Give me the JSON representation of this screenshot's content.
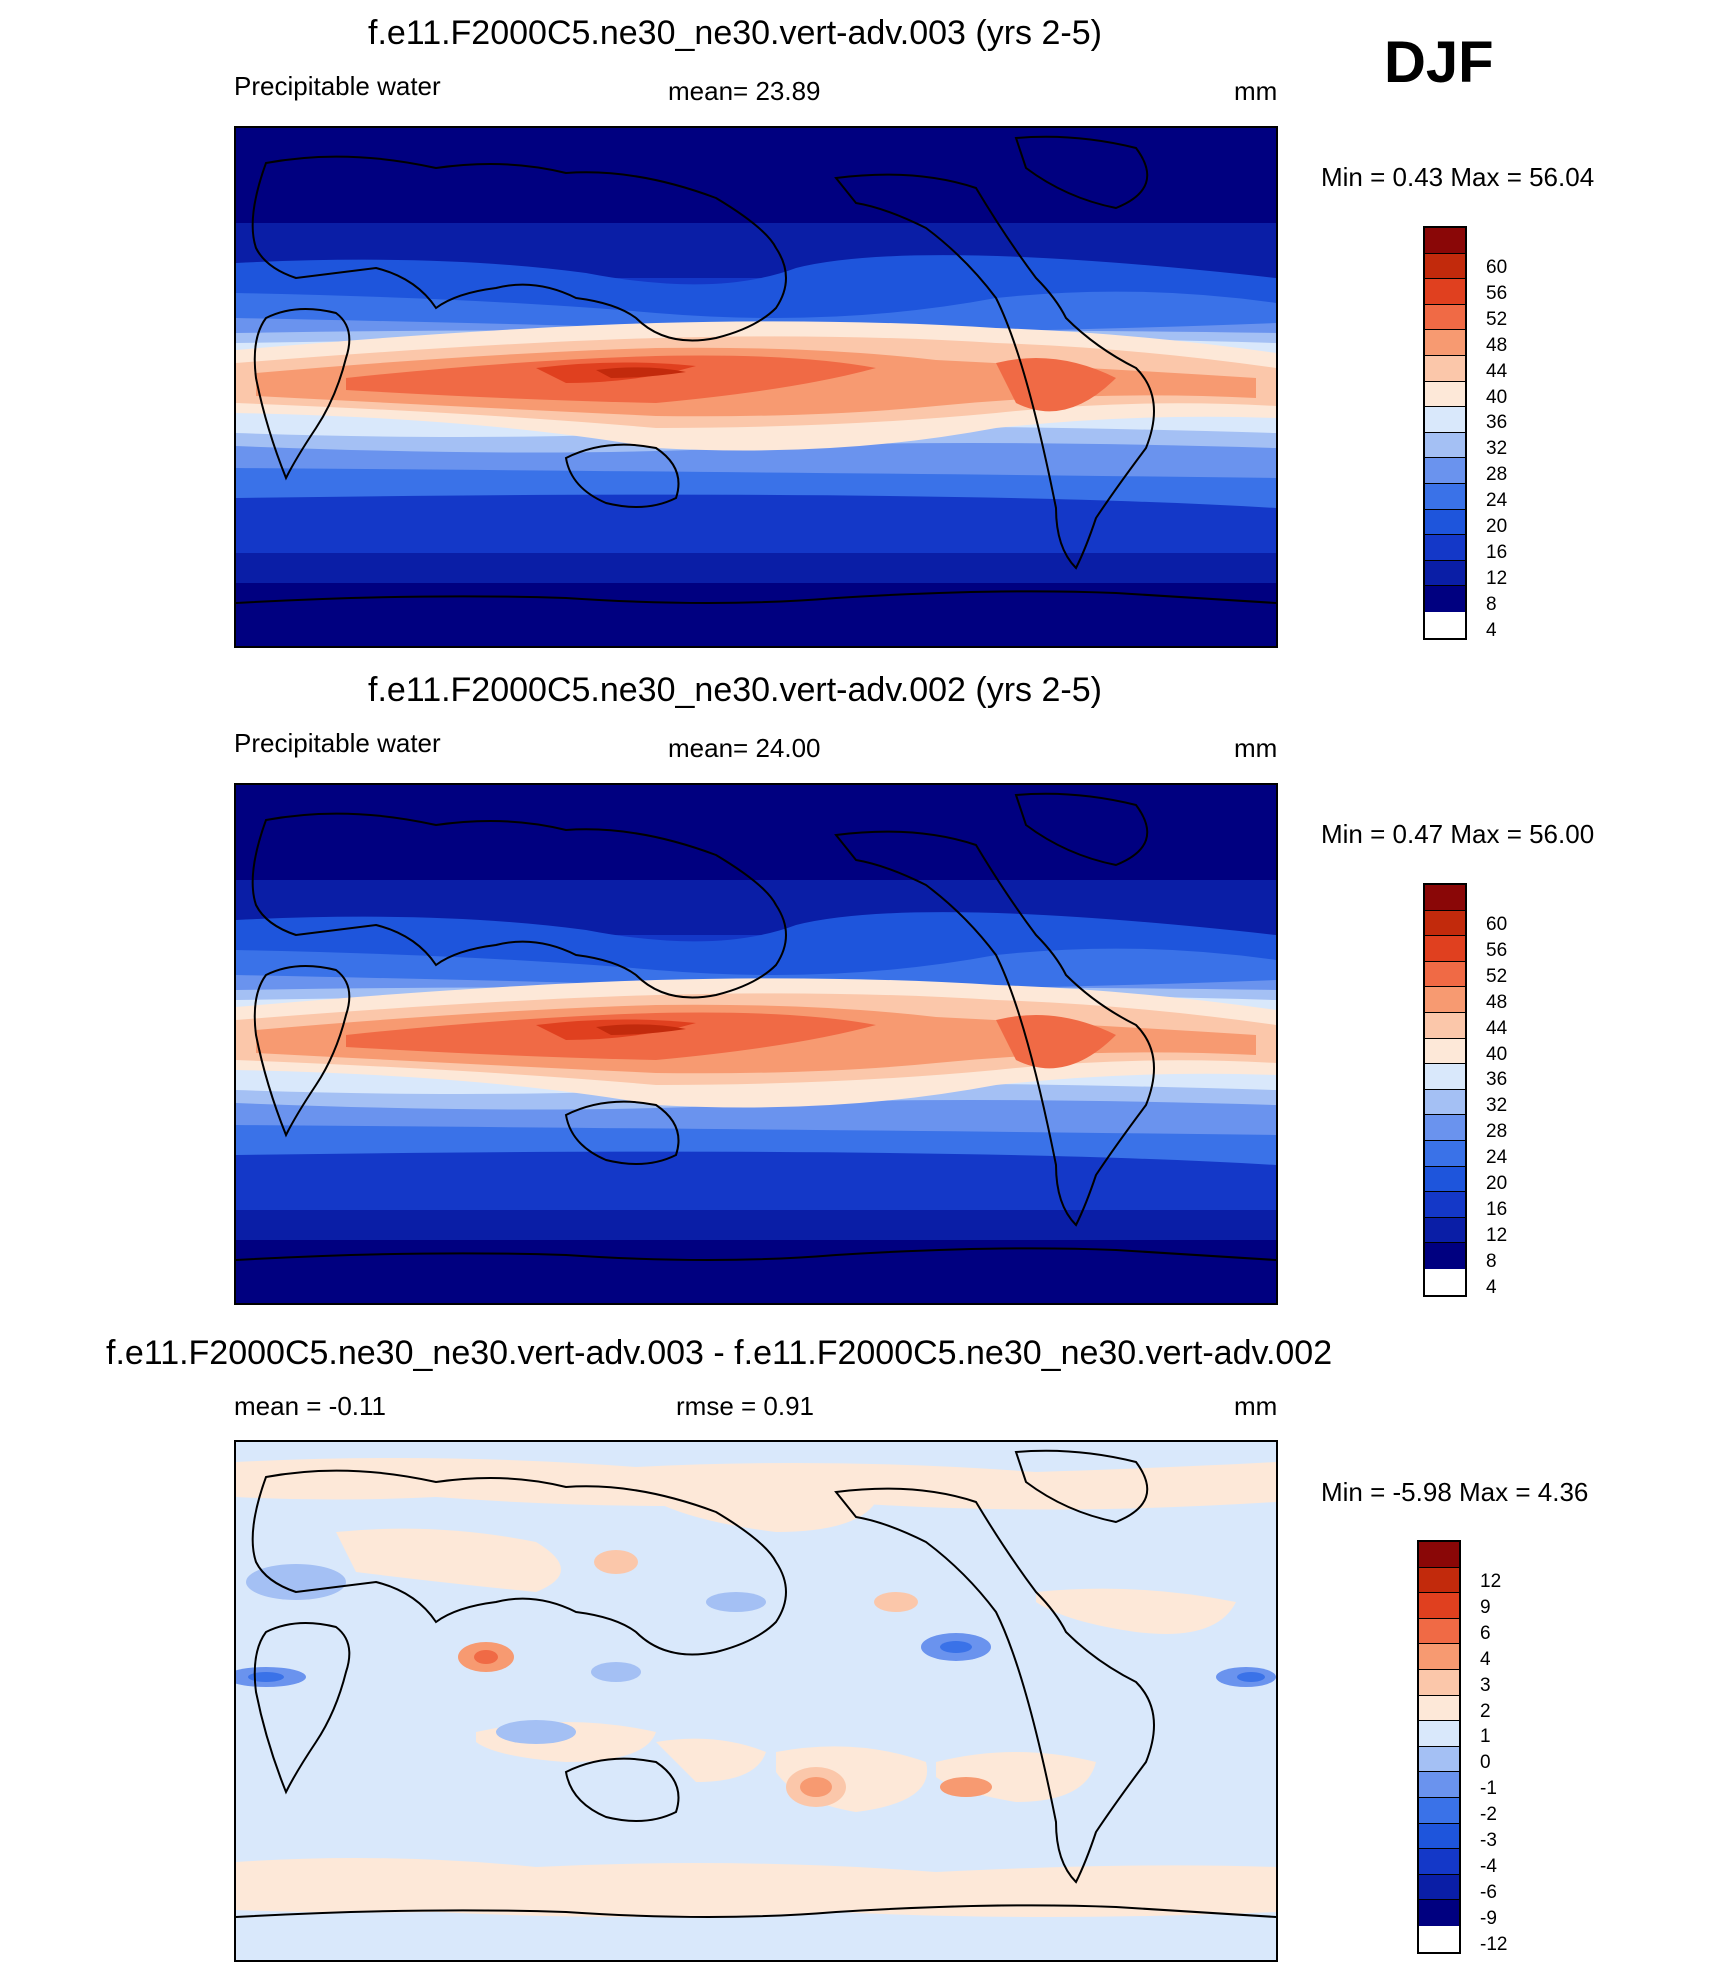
{
  "season": "DJF",
  "colors": {
    "abs_scale": [
      "#000080",
      "#0a1ea6",
      "#1438c8",
      "#1e55dc",
      "#3a72e8",
      "#6a93ee",
      "#a4c0f4",
      "#d9e8fb",
      "#fde8d8",
      "#fbc7aa",
      "#f79a71",
      "#f06a45",
      "#e0401f",
      "#c22a0c",
      "#8a0707"
    ],
    "diff_scale": [
      "#000080",
      "#0a1ea6",
      "#1438c8",
      "#1e55dc",
      "#3a72e8",
      "#6a93ee",
      "#a4c0f4",
      "#d9e8fb",
      "#fde8d8",
      "#fbc7aa",
      "#f79a71",
      "#f06a45",
      "#e0401f",
      "#c22a0c",
      "#8a0707"
    ],
    "coastline": "#000000"
  },
  "panels": [
    {
      "title": "f.e11.F2000C5.ne30_ne30.vert-adv.003 (yrs 2-5)",
      "variable": "Precipitable water",
      "mean": "mean=  23.89",
      "units": "mm",
      "minmax": "Min =    0.43 Max =   56.04",
      "levels": [
        "60",
        "56",
        "52",
        "48",
        "44",
        "40",
        "36",
        "32",
        "28",
        "24",
        "20",
        "16",
        "12",
        "8",
        "4"
      ]
    },
    {
      "title": "f.e11.F2000C5.ne30_ne30.vert-adv.002 (yrs 2-5)",
      "variable": "Precipitable water",
      "mean": "mean=  24.00",
      "units": "mm",
      "minmax": "Min =    0.47 Max =   56.00",
      "levels": [
        "60",
        "56",
        "52",
        "48",
        "44",
        "40",
        "36",
        "32",
        "28",
        "24",
        "20",
        "16",
        "12",
        "8",
        "4"
      ]
    },
    {
      "title": "f.e11.F2000C5.ne30_ne30.vert-adv.003 - f.e11.F2000C5.ne30_ne30.vert-adv.002",
      "mean": "mean =   -0.11",
      "rmse": "rmse =    0.91",
      "units": "mm",
      "minmax": "Min =  -5.98 Max =    4.36",
      "levels": [
        "12",
        "9",
        "6",
        "4",
        "3",
        "2",
        "1",
        "0",
        "-1",
        "-2",
        "-3",
        "-4",
        "-6",
        "-9",
        "-12"
      ]
    }
  ]
}
